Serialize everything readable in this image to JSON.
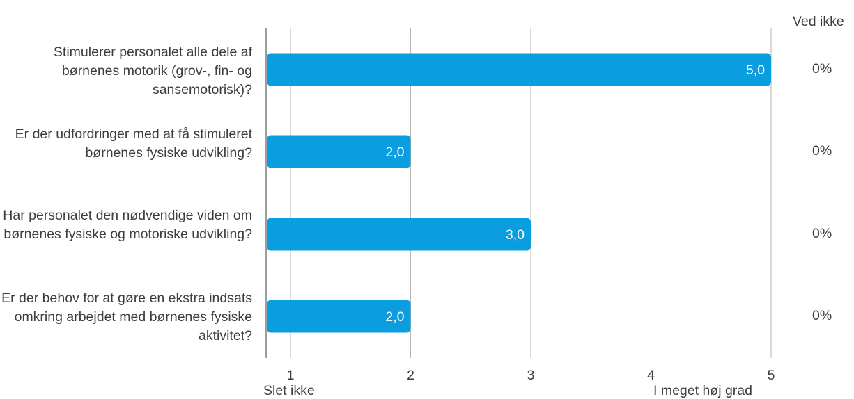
{
  "chart_data": {
    "type": "bar",
    "orientation": "horizontal",
    "categories": [
      "Stimulerer personalet alle dele af børnenes motorik (grov-, fin- og sansemotorisk)?",
      "Er der udfordringer med at få stimuleret børnenes fysiske udvikling?",
      "Har personalet den nødvendige viden om børnenes fysiske og motoriske udvikling?",
      "Er der behov for at gøre en ekstra indsats omkring arbejdet med børnenes fysiske aktivitet?"
    ],
    "values": [
      5.0,
      2.0,
      3.0,
      2.0
    ],
    "value_labels": [
      "5,0",
      "2,0",
      "3,0",
      "2,0"
    ],
    "xlim": [
      0.8,
      5
    ],
    "xticks": [
      "1",
      "2",
      "3",
      "4",
      "5"
    ],
    "xtick_values": [
      1,
      2,
      3,
      4,
      5
    ],
    "scale_low_label": "Slet ikke",
    "scale_high_label": "I meget høj grad",
    "ved_ikke_header": "Ved ikke",
    "ved_ikke_values": [
      "0%",
      "0%",
      "0%",
      "0%"
    ],
    "grid": true,
    "bar_color": "#0a9ee0"
  }
}
